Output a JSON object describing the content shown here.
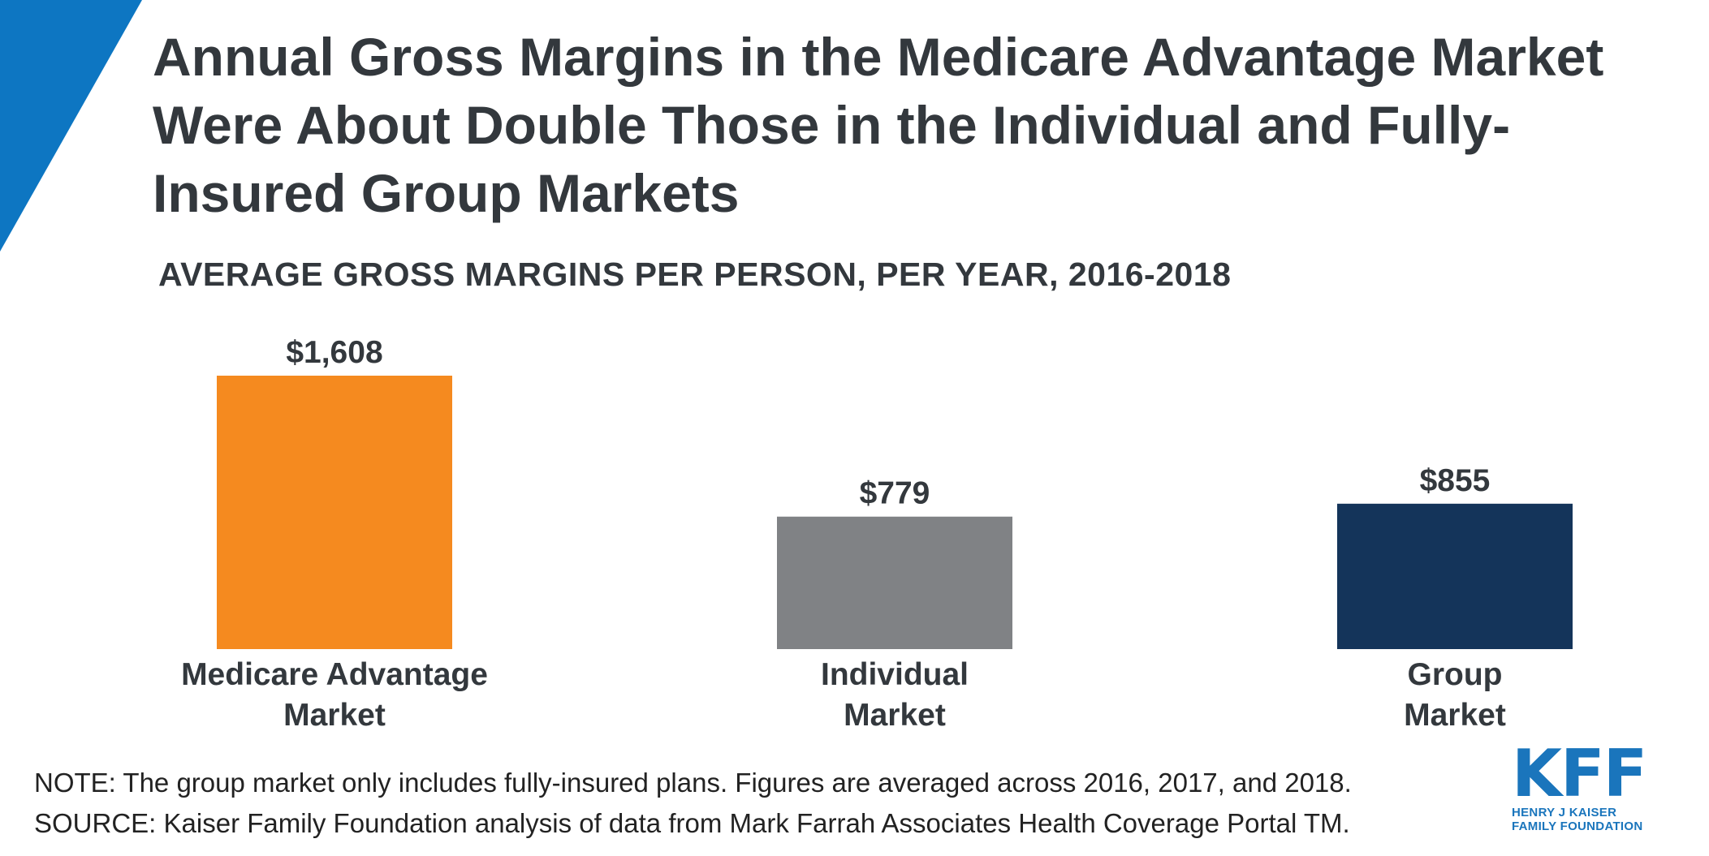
{
  "header": {
    "title": "Annual Gross Margins in the Medicare Advantage Market Were About Double Those in the Individual and Fully-Insured Group Markets",
    "subtitle": "AVERAGE GROSS MARGINS PER PERSON, PER YEAR, 2016-2018"
  },
  "chart_data": {
    "type": "bar",
    "title": "Annual Gross Margins in the Medicare Advantage Market Were About Double Those in the Individual and Fully-Insured Group Markets",
    "subtitle": "AVERAGE GROSS MARGINS PER PERSON, PER YEAR, 2016-2018",
    "categories": [
      [
        "Medicare Advantage",
        "Market"
      ],
      [
        "Individual",
        "Market"
      ],
      [
        "Group",
        "Market"
      ]
    ],
    "values": [
      1608,
      779,
      855
    ],
    "value_labels": [
      "$1,608",
      "$779",
      "$855"
    ],
    "colors": [
      "#f58a1f",
      "#808285",
      "#14345a"
    ],
    "xlabel": "",
    "ylabel": "",
    "ylim": [
      0,
      1608
    ],
    "grid": false,
    "legend": "none"
  },
  "footer": {
    "note": "NOTE: The group market only includes fully-insured plans. Figures are averaged across 2016, 2017, and 2018.",
    "source": "SOURCE: Kaiser Family Foundation analysis of data from Mark Farrah Associates Health Coverage Portal TM."
  },
  "logo": {
    "mark": "KFF",
    "line1": "HENRY J KAISER",
    "line2": "FAMILY FOUNDATION"
  },
  "colors": {
    "accent_blue": "#0d76c2",
    "text": "#33383d"
  }
}
